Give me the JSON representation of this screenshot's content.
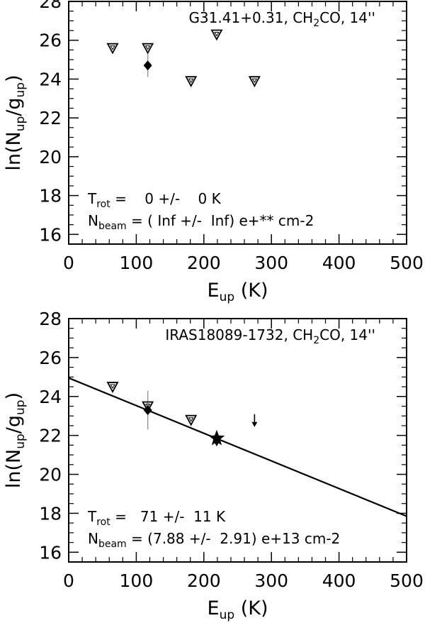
{
  "chart_data": [
    {
      "type": "scatter",
      "title": "G31.41+0.31, CH",
      "title_sub": "2",
      "title_end": "CO, 14''",
      "xlabel": "E",
      "xlabel_sub": "up",
      "xlabel_unit": "(K)",
      "ylabel_pre": "ln(N",
      "ylabel_sub1": "up",
      "ylabel_mid": "/g",
      "ylabel_sub2": "up",
      "ylabel_post": ")",
      "xlim": [
        0,
        500
      ],
      "ylim": [
        15.5,
        28
      ],
      "xticks": [
        "0",
        "100",
        "200",
        "300",
        "400",
        "500"
      ],
      "yticks": [
        "16",
        "18",
        "20",
        "22",
        "24",
        "26",
        "28"
      ],
      "triangles": [
        {
          "x": 65,
          "y": 25.6
        },
        {
          "x": 117,
          "y": 25.6
        },
        {
          "x": 181,
          "y": 23.9
        },
        {
          "x": 219,
          "y": 26.3
        },
        {
          "x": 275,
          "y": 23.9
        }
      ],
      "diamonds": [
        {
          "x": 117,
          "y": 24.7,
          "err": 0.6
        }
      ],
      "stars": [],
      "arrows": [],
      "fit": null,
      "trot_line": {
        "label": "T",
        "sub": "rot",
        "value": " =    0 +/-    0 K"
      },
      "nbeam_line": {
        "label": "N",
        "sub": "beam",
        "value": " = ( Inf +/-  Inf) e+** cm-2"
      }
    },
    {
      "type": "scatter",
      "title": "IRAS18089-1732, CH",
      "title_sub": "2",
      "title_end": "CO, 14''",
      "xlabel": "E",
      "xlabel_sub": "up",
      "xlabel_unit": "(K)",
      "ylabel_pre": "ln(N",
      "ylabel_sub1": "up",
      "ylabel_mid": "/g",
      "ylabel_sub2": "up",
      "ylabel_post": ")",
      "xlim": [
        0,
        500
      ],
      "ylim": [
        15.5,
        28
      ],
      "xticks": [
        "0",
        "100",
        "200",
        "300",
        "400",
        "500"
      ],
      "yticks": [
        "16",
        "18",
        "20",
        "22",
        "24",
        "26",
        "28"
      ],
      "triangles": [
        {
          "x": 65,
          "y": 24.5
        },
        {
          "x": 117,
          "y": 23.5
        },
        {
          "x": 181,
          "y": 22.8
        }
      ],
      "diamonds": [
        {
          "x": 117,
          "y": 23.3,
          "err": 1.0
        }
      ],
      "stars": [
        {
          "x": 219,
          "y": 21.85
        }
      ],
      "arrows": [
        {
          "x": 219,
          "y": 21.8
        },
        {
          "x": 275,
          "y": 22.8
        }
      ],
      "fit": {
        "x": [
          0,
          500
        ],
        "y": [
          24.95,
          17.85
        ]
      },
      "trot_line": {
        "label": "T",
        "sub": "rot",
        "value": " =   71 +/-  11 K"
      },
      "nbeam_line": {
        "label": "N",
        "sub": "beam",
        "value": " = (7.88 +/-  2.91) e+13 cm-2"
      }
    }
  ]
}
